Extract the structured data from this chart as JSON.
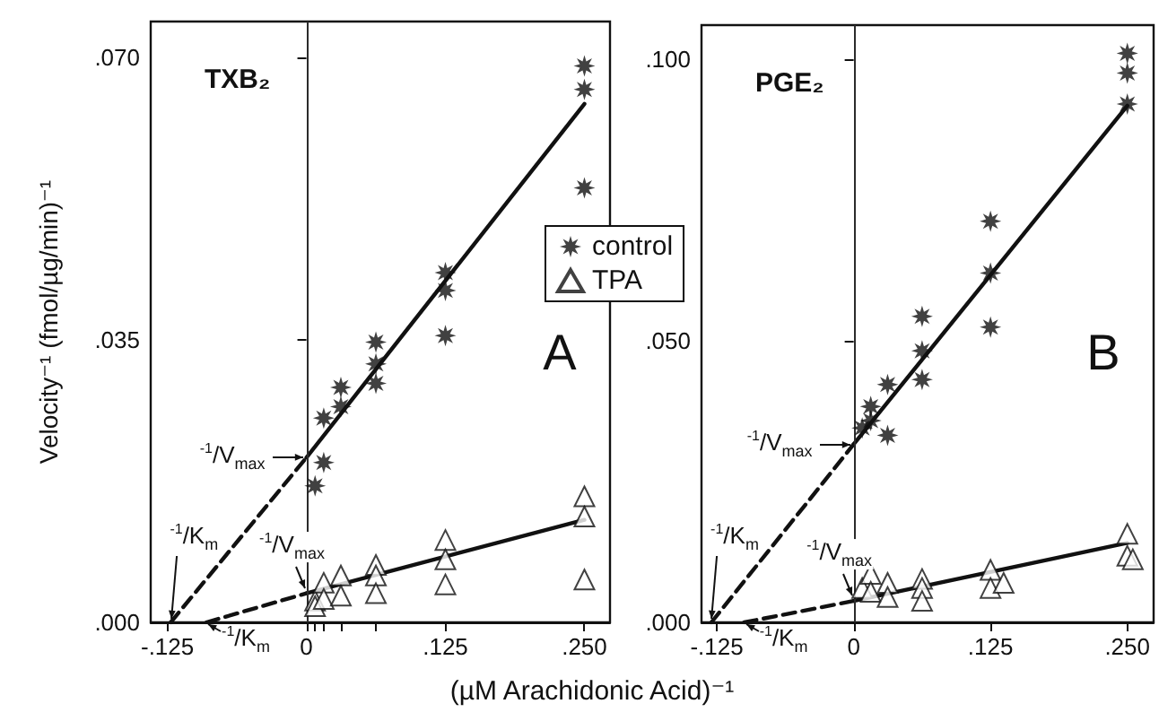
{
  "chart_data": [
    {
      "type": "scatter",
      "title": "TXB₂",
      "xlabel": "(µM Arachidonic Acid)⁻¹",
      "ylabel": "Velocity⁻¹ (fmol/µg/min)⁻¹",
      "xlim": [
        -0.14,
        0.273
      ],
      "ylim": [
        0,
        0.0744
      ],
      "xticks": [
        {
          "value": -0.125,
          "label": "-.125"
        },
        {
          "value": 0,
          "label": "0"
        },
        {
          "value": 0.0078,
          "label": null
        },
        {
          "value": 0.0156,
          "label": null
        },
        {
          "value": 0.031,
          "label": null
        },
        {
          "value": 0.0625,
          "label": null
        },
        {
          "value": 0.125,
          "label": ".125"
        },
        {
          "value": 0.25,
          "label": ".250"
        }
      ],
      "yticks": [
        {
          "value": 0,
          "label": ".000"
        },
        {
          "value": 0.035,
          "label": ".035"
        },
        {
          "value": 0.07,
          "label": ".070"
        }
      ],
      "legend": "right",
      "ref_lines": [
        {
          "axis": "x",
          "value": 0
        }
      ],
      "series": [
        {
          "name": "control",
          "type": "scatter",
          "marker": "star",
          "color": "#111111",
          "x": [
            0.0078,
            0.0156,
            0.0156,
            0.031,
            0.031,
            0.0625,
            0.0625,
            0.0625,
            0.125,
            0.125,
            0.125,
            0.25,
            0.25,
            0.25
          ],
          "values": [
            0.0169,
            0.0198,
            0.0253,
            0.0267,
            0.0291,
            0.0347,
            0.032,
            0.0296,
            0.0433,
            0.0411,
            0.0355,
            0.0689,
            0.066,
            0.0538
          ]
        },
        {
          "name": "TPA",
          "type": "scatter",
          "marker": "triangle",
          "color": "#111111",
          "x": [
            0.0078,
            0.0078,
            0.0156,
            0.0156,
            0.031,
            0.031,
            0.0625,
            0.0625,
            0.0625,
            0.125,
            0.125,
            0.125,
            0.25,
            0.25,
            0.25
          ],
          "values": [
            0.0027,
            0.002,
            0.0049,
            0.0029,
            0.0058,
            0.0033,
            0.0071,
            0.0058,
            0.0036,
            0.0102,
            0.0078,
            0.0047,
            0.0156,
            0.0131,
            0.0053
          ]
        },
        {
          "type": "line",
          "marker": "none",
          "color": "#111111",
          "x": [
            0,
            0.25
          ],
          "values": [
            0.0204,
            0.0642
          ]
        },
        {
          "type": "line",
          "marker": "none",
          "line_style": "dashed",
          "color": "#111111",
          "x": [
            -0.122,
            0
          ],
          "values": [
            0,
            0.0204
          ]
        },
        {
          "type": "line",
          "marker": "none",
          "color": "#111111",
          "x": [
            0,
            0.25
          ],
          "values": [
            0.0036,
            0.0127
          ]
        },
        {
          "type": "line",
          "marker": "none",
          "line_style": "dashed",
          "color": "#111111",
          "x": [
            -0.09,
            0
          ],
          "values": [
            0,
            0.0036
          ]
        }
      ],
      "annotations": [
        {
          "text": "$^{-1}$/V$_{max}$",
          "x": 0,
          "y": 0.0204
        },
        {
          "text": "$^{-1}$/V$_{max}$",
          "x": 0,
          "y": 0.0036
        },
        {
          "text": "$^{-1}$/K$_{m}$",
          "x": -0.122,
          "y": 0
        },
        {
          "text": "$^{-1}$/K$_{m}$",
          "x": -0.09,
          "y": 0
        },
        "A"
      ]
    },
    {
      "type": "scatter",
      "title": "PGE₂",
      "xlim": [
        -0.139,
        0.274
      ],
      "ylim": [
        0,
        0.106
      ],
      "xticks": [
        {
          "value": -0.125,
          "label": "-.125"
        },
        {
          "value": 0,
          "label": "0"
        },
        {
          "value": 0.125,
          "label": ".125"
        },
        {
          "value": 0.25,
          "label": ".250"
        }
      ],
      "yticks": [
        {
          "value": 0,
          "label": ".000"
        },
        {
          "value": 0.05,
          "label": ".050"
        },
        {
          "value": 0.1,
          "label": ".100"
        }
      ],
      "ref_lines": [
        {
          "axis": "x",
          "value": 0
        }
      ],
      "series": [
        {
          "type": "scatter",
          "marker": "star",
          "color": "#111111",
          "x": [
            0.0078,
            0.0156,
            0.0156,
            0.031,
            0.031,
            0.0625,
            0.0625,
            0.0625,
            0.125,
            0.125,
            0.125,
            0.25,
            0.25,
            0.25
          ],
          "values": [
            0.0345,
            0.0383,
            0.0358,
            0.0422,
            0.0332,
            0.0543,
            0.0482,
            0.0431,
            0.0712,
            0.062,
            0.0524,
            0.101,
            0.0975,
            0.092
          ]
        },
        {
          "type": "scatter",
          "marker": "triangle",
          "color": "#111111",
          "x": [
            0.0078,
            0.0156,
            0.0156,
            0.031,
            0.031,
            0.0625,
            0.0625,
            0.0625,
            0.125,
            0.125,
            0.137,
            0.25,
            0.25,
            0.255
          ],
          "values": [
            0.0061,
            0.0086,
            0.0054,
            0.007,
            0.0045,
            0.0077,
            0.0061,
            0.0038,
            0.0093,
            0.0061,
            0.007,
            0.0157,
            0.0118,
            0.0112
          ]
        },
        {
          "type": "line",
          "marker": "none",
          "color": "#111111",
          "x": [
            0,
            0.25
          ],
          "values": [
            0.0316,
            0.0917
          ]
        },
        {
          "type": "line",
          "marker": "none",
          "line_style": "dashed",
          "color": "#111111",
          "x": [
            -0.13,
            0
          ],
          "values": [
            0,
            0.0316
          ]
        },
        {
          "type": "line",
          "marker": "none",
          "color": "#111111",
          "x": [
            0,
            0.25
          ],
          "values": [
            0.0038,
            0.0141
          ]
        },
        {
          "type": "line",
          "marker": "none",
          "line_style": "dashed",
          "color": "#111111",
          "x": [
            -0.1,
            0
          ],
          "values": [
            0,
            0.0038
          ]
        }
      ],
      "annotations": [
        {
          "text": "$^{-1}$/V$_{max}$",
          "x": 0,
          "y": 0.0316
        },
        {
          "text": "$^{-1}$/V$_{max}$",
          "x": 0,
          "y": 0.0038
        },
        {
          "text": "$^{-1}$/K$_{m}$",
          "x": -0.13,
          "y": 0
        },
        {
          "text": "$^{-1}$/K$_{m}$",
          "x": -0.1,
          "y": 0
        },
        "B"
      ]
    }
  ]
}
